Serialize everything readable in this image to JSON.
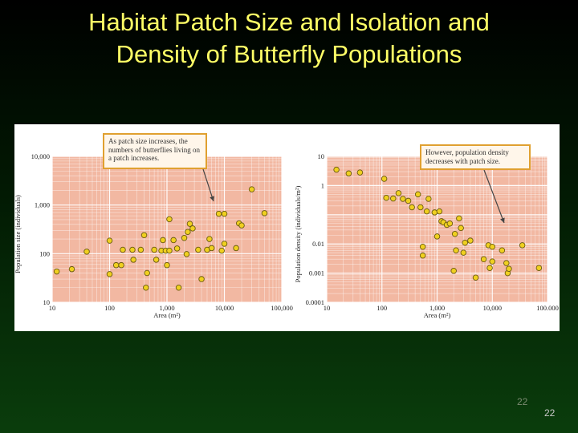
{
  "slide": {
    "title_line1": "Habitat Patch Size and Isolation and",
    "title_line2": "Density of Butterfly Populations",
    "page_number_a": "22",
    "page_number_b": "22"
  },
  "colors": {
    "plot_bg": "#f2b8a2",
    "grid": "#ffffff",
    "point_fill": "#f0d020",
    "point_stroke": "#6a5a10",
    "callout_border": "#e0a030",
    "arrow": "#444444"
  },
  "chart_data": [
    {
      "type": "scatter",
      "xscale": "log",
      "yscale": "log",
      "xlabel": "Area (m²)",
      "ylabel": "Population size (individuals)",
      "xlim": [
        10,
        100000
      ],
      "ylim": [
        10,
        10000
      ],
      "xticks": [
        "10",
        "100",
        "1,000",
        "10,000",
        "100,000"
      ],
      "yticks": [
        "10",
        "100",
        "1,000",
        "10,000"
      ],
      "annotation": "As patch size increases, the numbers of butterflies living on a patch increases.",
      "points": [
        [
          12,
          43
        ],
        [
          22,
          48
        ],
        [
          40,
          110
        ],
        [
          100,
          38
        ],
        [
          100,
          185
        ],
        [
          130,
          58
        ],
        [
          160,
          58
        ],
        [
          170,
          120
        ],
        [
          250,
          120
        ],
        [
          260,
          75
        ],
        [
          350,
          120
        ],
        [
          400,
          240
        ],
        [
          430,
          20
        ],
        [
          450,
          40
        ],
        [
          600,
          120
        ],
        [
          650,
          75
        ],
        [
          800,
          115
        ],
        [
          850,
          190
        ],
        [
          950,
          115
        ],
        [
          1000,
          58
        ],
        [
          1100,
          510
        ],
        [
          1100,
          115
        ],
        [
          1300,
          190
        ],
        [
          1500,
          128
        ],
        [
          1600,
          20
        ],
        [
          2000,
          210
        ],
        [
          2200,
          98
        ],
        [
          2300,
          280
        ],
        [
          2500,
          410
        ],
        [
          2800,
          330
        ],
        [
          3500,
          120
        ],
        [
          4000,
          30
        ],
        [
          5000,
          120
        ],
        [
          5500,
          200
        ],
        [
          6000,
          130
        ],
        [
          8000,
          660
        ],
        [
          9000,
          115
        ],
        [
          10000,
          160
        ],
        [
          10000,
          660
        ],
        [
          16000,
          130
        ],
        [
          18000,
          420
        ],
        [
          20000,
          380
        ],
        [
          30000,
          2100
        ],
        [
          50000,
          680
        ]
      ]
    },
    {
      "type": "scatter",
      "xscale": "log",
      "yscale": "log",
      "xlabel": "Area (m²)",
      "ylabel": "Population density (individuals/m²)",
      "xlim": [
        10,
        100000
      ],
      "ylim": [
        0.0001,
        10
      ],
      "xticks": [
        "10",
        "100",
        "1,000",
        "10,000",
        "100.000"
      ],
      "yticks": [
        "0.0001",
        "0.001",
        "0.01",
        "1",
        "10"
      ],
      "annotation": "However, population density decreases with patch size.",
      "points": [
        [
          15,
          3.5
        ],
        [
          25,
          2.6
        ],
        [
          40,
          2.8
        ],
        [
          110,
          1.7
        ],
        [
          120,
          0.38
        ],
        [
          160,
          0.36
        ],
        [
          200,
          0.55
        ],
        [
          240,
          0.35
        ],
        [
          300,
          0.3
        ],
        [
          350,
          0.18
        ],
        [
          450,
          0.5
        ],
        [
          500,
          0.18
        ],
        [
          550,
          0.008
        ],
        [
          550,
          0.004
        ],
        [
          650,
          0.13
        ],
        [
          700,
          0.35
        ],
        [
          900,
          0.12
        ],
        [
          1000,
          0.018
        ],
        [
          1100,
          0.13
        ],
        [
          1200,
          0.06
        ],
        [
          1300,
          0.055
        ],
        [
          1500,
          0.045
        ],
        [
          1700,
          0.05
        ],
        [
          2000,
          0.0012
        ],
        [
          2100,
          0.022
        ],
        [
          2200,
          0.006
        ],
        [
          2500,
          0.075
        ],
        [
          2700,
          0.035
        ],
        [
          3000,
          0.005
        ],
        [
          3200,
          0.011
        ],
        [
          4000,
          0.013
        ],
        [
          5000,
          0.0007
        ],
        [
          7000,
          0.003
        ],
        [
          8500,
          0.009
        ],
        [
          9000,
          0.0015
        ],
        [
          10000,
          0.0025
        ],
        [
          10000,
          0.008
        ],
        [
          15000,
          0.006
        ],
        [
          18000,
          0.0022
        ],
        [
          19000,
          0.001
        ],
        [
          20000,
          0.0014
        ],
        [
          35000,
          0.009
        ],
        [
          70000,
          0.0015
        ]
      ]
    }
  ]
}
